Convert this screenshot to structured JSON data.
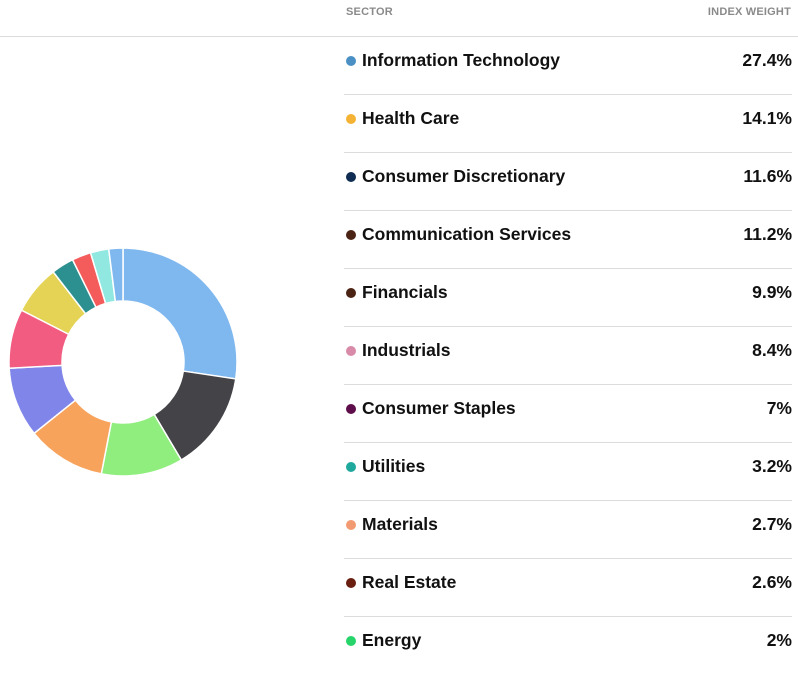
{
  "table": {
    "col_sector": "SECTOR",
    "col_weight": "INDEX WEIGHT"
  },
  "chart_data": {
    "type": "pie",
    "variant": "donut",
    "title": "",
    "categories": [
      "Information Technology",
      "Health Care",
      "Consumer Discretionary",
      "Communication Services",
      "Financials",
      "Industrials",
      "Consumer Staples",
      "Utilities",
      "Materials",
      "Real Estate",
      "Energy"
    ],
    "values": [
      27.4,
      14.1,
      11.6,
      11.2,
      9.9,
      8.4,
      7,
      3.2,
      2.7,
      2.6,
      2
    ],
    "value_labels": [
      "27.4%",
      "14.1%",
      "11.6%",
      "11.2%",
      "9.9%",
      "8.4%",
      "7%",
      "3.2%",
      "2.7%",
      "2.6%",
      "2%"
    ],
    "unit": "%",
    "legend_dot_colors": [
      "#4a90c4",
      "#f5b335",
      "#0f2c52",
      "#4b2314",
      "#4b2314",
      "#d98aa8",
      "#5e0e4a",
      "#1fa99d",
      "#f29b72",
      "#6a1e10",
      "#26d46a"
    ],
    "slice_colors": [
      "#7fb7ef",
      "#434348",
      "#90ee7e",
      "#f7a35c",
      "#8085e9",
      "#f15c80",
      "#e4d354",
      "#2b908f",
      "#f45b5b",
      "#91e8e1",
      "#7fb7ef"
    ],
    "legend_placement": "right"
  }
}
